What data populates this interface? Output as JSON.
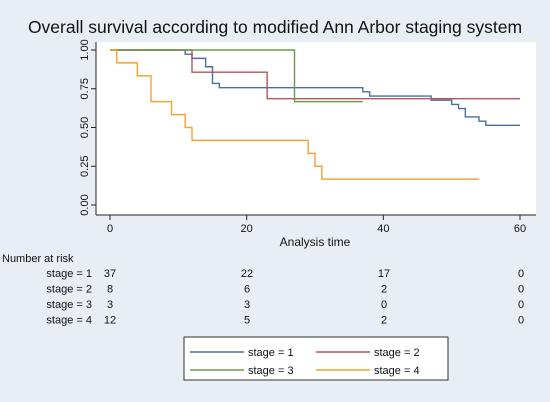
{
  "chart_data": {
    "type": "line",
    "title": "Overall survival according to modified Ann Arbor staging system",
    "xlabel": "Analysis time",
    "ylabel": "",
    "xlim": [
      0,
      60
    ],
    "ylim": [
      0,
      1
    ],
    "x_ticks": [
      0,
      20,
      40,
      60
    ],
    "y_ticks": [
      "0.00",
      "0.25",
      "0.50",
      "0.75",
      "1.00"
    ],
    "grid": false,
    "legend_position": "bottom",
    "series": [
      {
        "name": "stage = 1",
        "color": "#4a6fa0",
        "steps": [
          [
            0,
            1.0
          ],
          [
            11,
            0.973
          ],
          [
            12,
            0.946
          ],
          [
            14,
            0.892
          ],
          [
            15,
            0.784
          ],
          [
            16,
            0.757
          ],
          [
            37,
            0.73
          ],
          [
            38,
            0.703
          ],
          [
            47,
            0.676
          ],
          [
            50,
            0.649
          ],
          [
            51,
            0.622
          ],
          [
            52,
            0.568
          ],
          [
            54,
            0.541
          ],
          [
            55,
            0.514
          ],
          [
            60,
            0.514
          ]
        ]
      },
      {
        "name": "stage = 2",
        "color": "#b4565a",
        "steps": [
          [
            0,
            1.0
          ],
          [
            12,
            0.857
          ],
          [
            23,
            0.686
          ],
          [
            60,
            0.686
          ]
        ]
      },
      {
        "name": "stage = 3",
        "color": "#6c9a4c",
        "steps": [
          [
            0,
            1.0
          ],
          [
            27,
            0.667
          ],
          [
            37,
            0.667
          ]
        ]
      },
      {
        "name": "stage = 4",
        "color": "#f2a330",
        "steps": [
          [
            0,
            1.0
          ],
          [
            1,
            0.917
          ],
          [
            4,
            0.833
          ],
          [
            6,
            0.667
          ],
          [
            9,
            0.583
          ],
          [
            11,
            0.5
          ],
          [
            12,
            0.417
          ],
          [
            29,
            0.333
          ],
          [
            30,
            0.25
          ],
          [
            31,
            0.167
          ],
          [
            54,
            0.167
          ]
        ]
      }
    ]
  },
  "risk_table": {
    "title": "Number at risk",
    "rows": [
      {
        "label": "stage = 1",
        "values": [
          "37",
          "22",
          "17",
          "0"
        ]
      },
      {
        "label": "stage = 2",
        "values": [
          "8",
          "6",
          "2",
          "0"
        ]
      },
      {
        "label": "stage = 3",
        "values": [
          "3",
          "3",
          "0",
          "0"
        ]
      },
      {
        "label": "stage = 4",
        "values": [
          "12",
          "5",
          "2",
          "0"
        ]
      }
    ]
  }
}
